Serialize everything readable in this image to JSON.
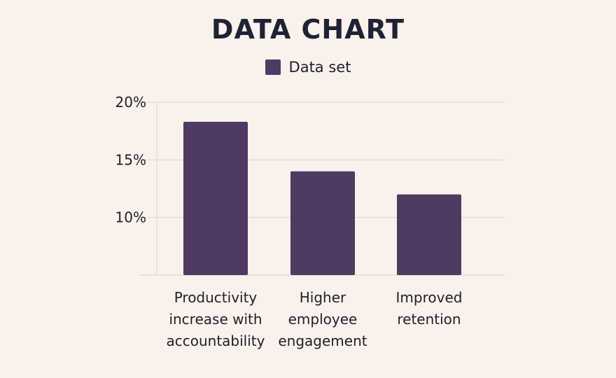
{
  "chart_data": {
    "type": "bar",
    "title": "DATA CHART",
    "categories": [
      [
        "Productivity",
        "increase with",
        "accountability"
      ],
      [
        "Higher",
        "employee",
        "engagement"
      ],
      [
        "Improved",
        "retention"
      ]
    ],
    "series": [
      {
        "name": "Data set",
        "values": [
          18.3,
          14.0,
          12.0
        ],
        "color": "#4e3a62"
      }
    ],
    "yticks": [
      "10%",
      "15%",
      "20%"
    ],
    "ytick_values": [
      10,
      15,
      20
    ],
    "ylim": [
      5,
      20
    ],
    "legend_position": "top-center",
    "grid": true,
    "gridline_color": "#e6dcd6"
  }
}
